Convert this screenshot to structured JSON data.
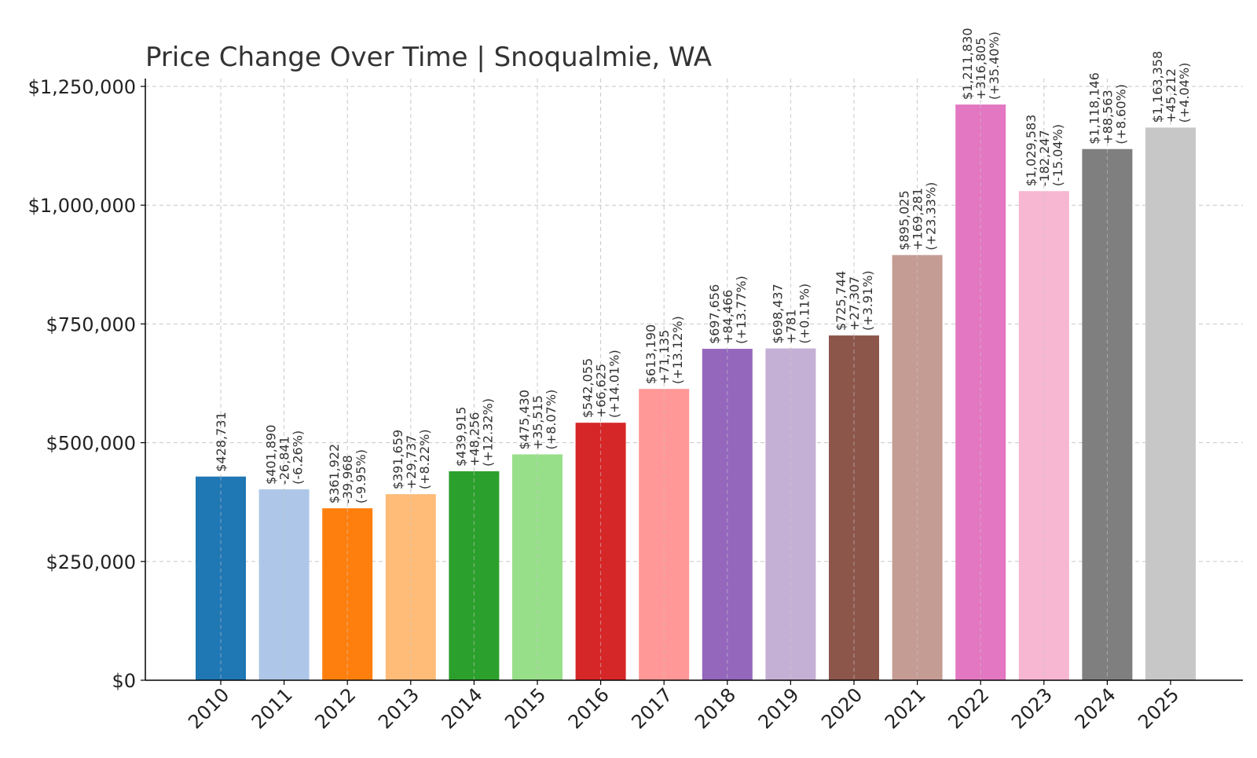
{
  "chart_data": {
    "type": "bar",
    "title": "Price Change Over Time | Snoqualmie, WA",
    "xlabel": "",
    "ylabel": "",
    "ylim": [
      0,
      1250000
    ],
    "grid": true,
    "y_ticks": [
      {
        "value": 0,
        "label": "$0"
      },
      {
        "value": 250000,
        "label": "$250,000"
      },
      {
        "value": 500000,
        "label": "$500,000"
      },
      {
        "value": 750000,
        "label": "$750,000"
      },
      {
        "value": 1000000,
        "label": "$1,000,000"
      },
      {
        "value": 1250000,
        "label": "$1,250,000"
      }
    ],
    "categories": [
      "2010",
      "2011",
      "2012",
      "2013",
      "2014",
      "2015",
      "2016",
      "2017",
      "2018",
      "2019",
      "2020",
      "2021",
      "2022",
      "2023",
      "2024",
      "2025"
    ],
    "values": [
      428731,
      401890,
      361922,
      391659,
      439915,
      475430,
      542055,
      613190,
      697656,
      698437,
      725744,
      895025,
      1211830,
      1029583,
      1118146,
      1163358
    ],
    "colors": [
      "#1f77b4",
      "#aec7e8",
      "#ff7f0e",
      "#ffbb78",
      "#2ca02c",
      "#98df8a",
      "#d62728",
      "#ff9896",
      "#9467bd",
      "#c5b0d5",
      "#8c564b",
      "#c49c94",
      "#e377c2",
      "#f7b6d2",
      "#7f7f7f",
      "#c7c7c7"
    ],
    "annotations": [
      [
        "$428,731"
      ],
      [
        "$401,890",
        "-26,841",
        "(-6.26%)"
      ],
      [
        "$361,922",
        "-39,968",
        "(-9.95%)"
      ],
      [
        "$391,659",
        "+29,737",
        "(+8.22%)"
      ],
      [
        "$439,915",
        "+48,256",
        "(+12.32%)"
      ],
      [
        "$475,430",
        "+35,515",
        "(+8.07%)"
      ],
      [
        "$542,055",
        "+66,625",
        "(+14.01%)"
      ],
      [
        "$613,190",
        "+71,135",
        "(+13.12%)"
      ],
      [
        "$697,656",
        "+84,466",
        "(+13.77%)"
      ],
      [
        "$698,437",
        "+781",
        "(+0.11%)"
      ],
      [
        "$725,744",
        "+27,307",
        "(+3.91%)"
      ],
      [
        "$895,025",
        "+169,281",
        "(+23.33%)"
      ],
      [
        "$1,211,830",
        "+316,805",
        "(+35.40%)"
      ],
      [
        "$1,029,583",
        "-182,247",
        "(-15.04%)"
      ],
      [
        "$1,118,146",
        "+88,563",
        "(+8.60%)"
      ],
      [
        "$1,163,358",
        "+45,212",
        "(+4.04%)"
      ]
    ]
  }
}
